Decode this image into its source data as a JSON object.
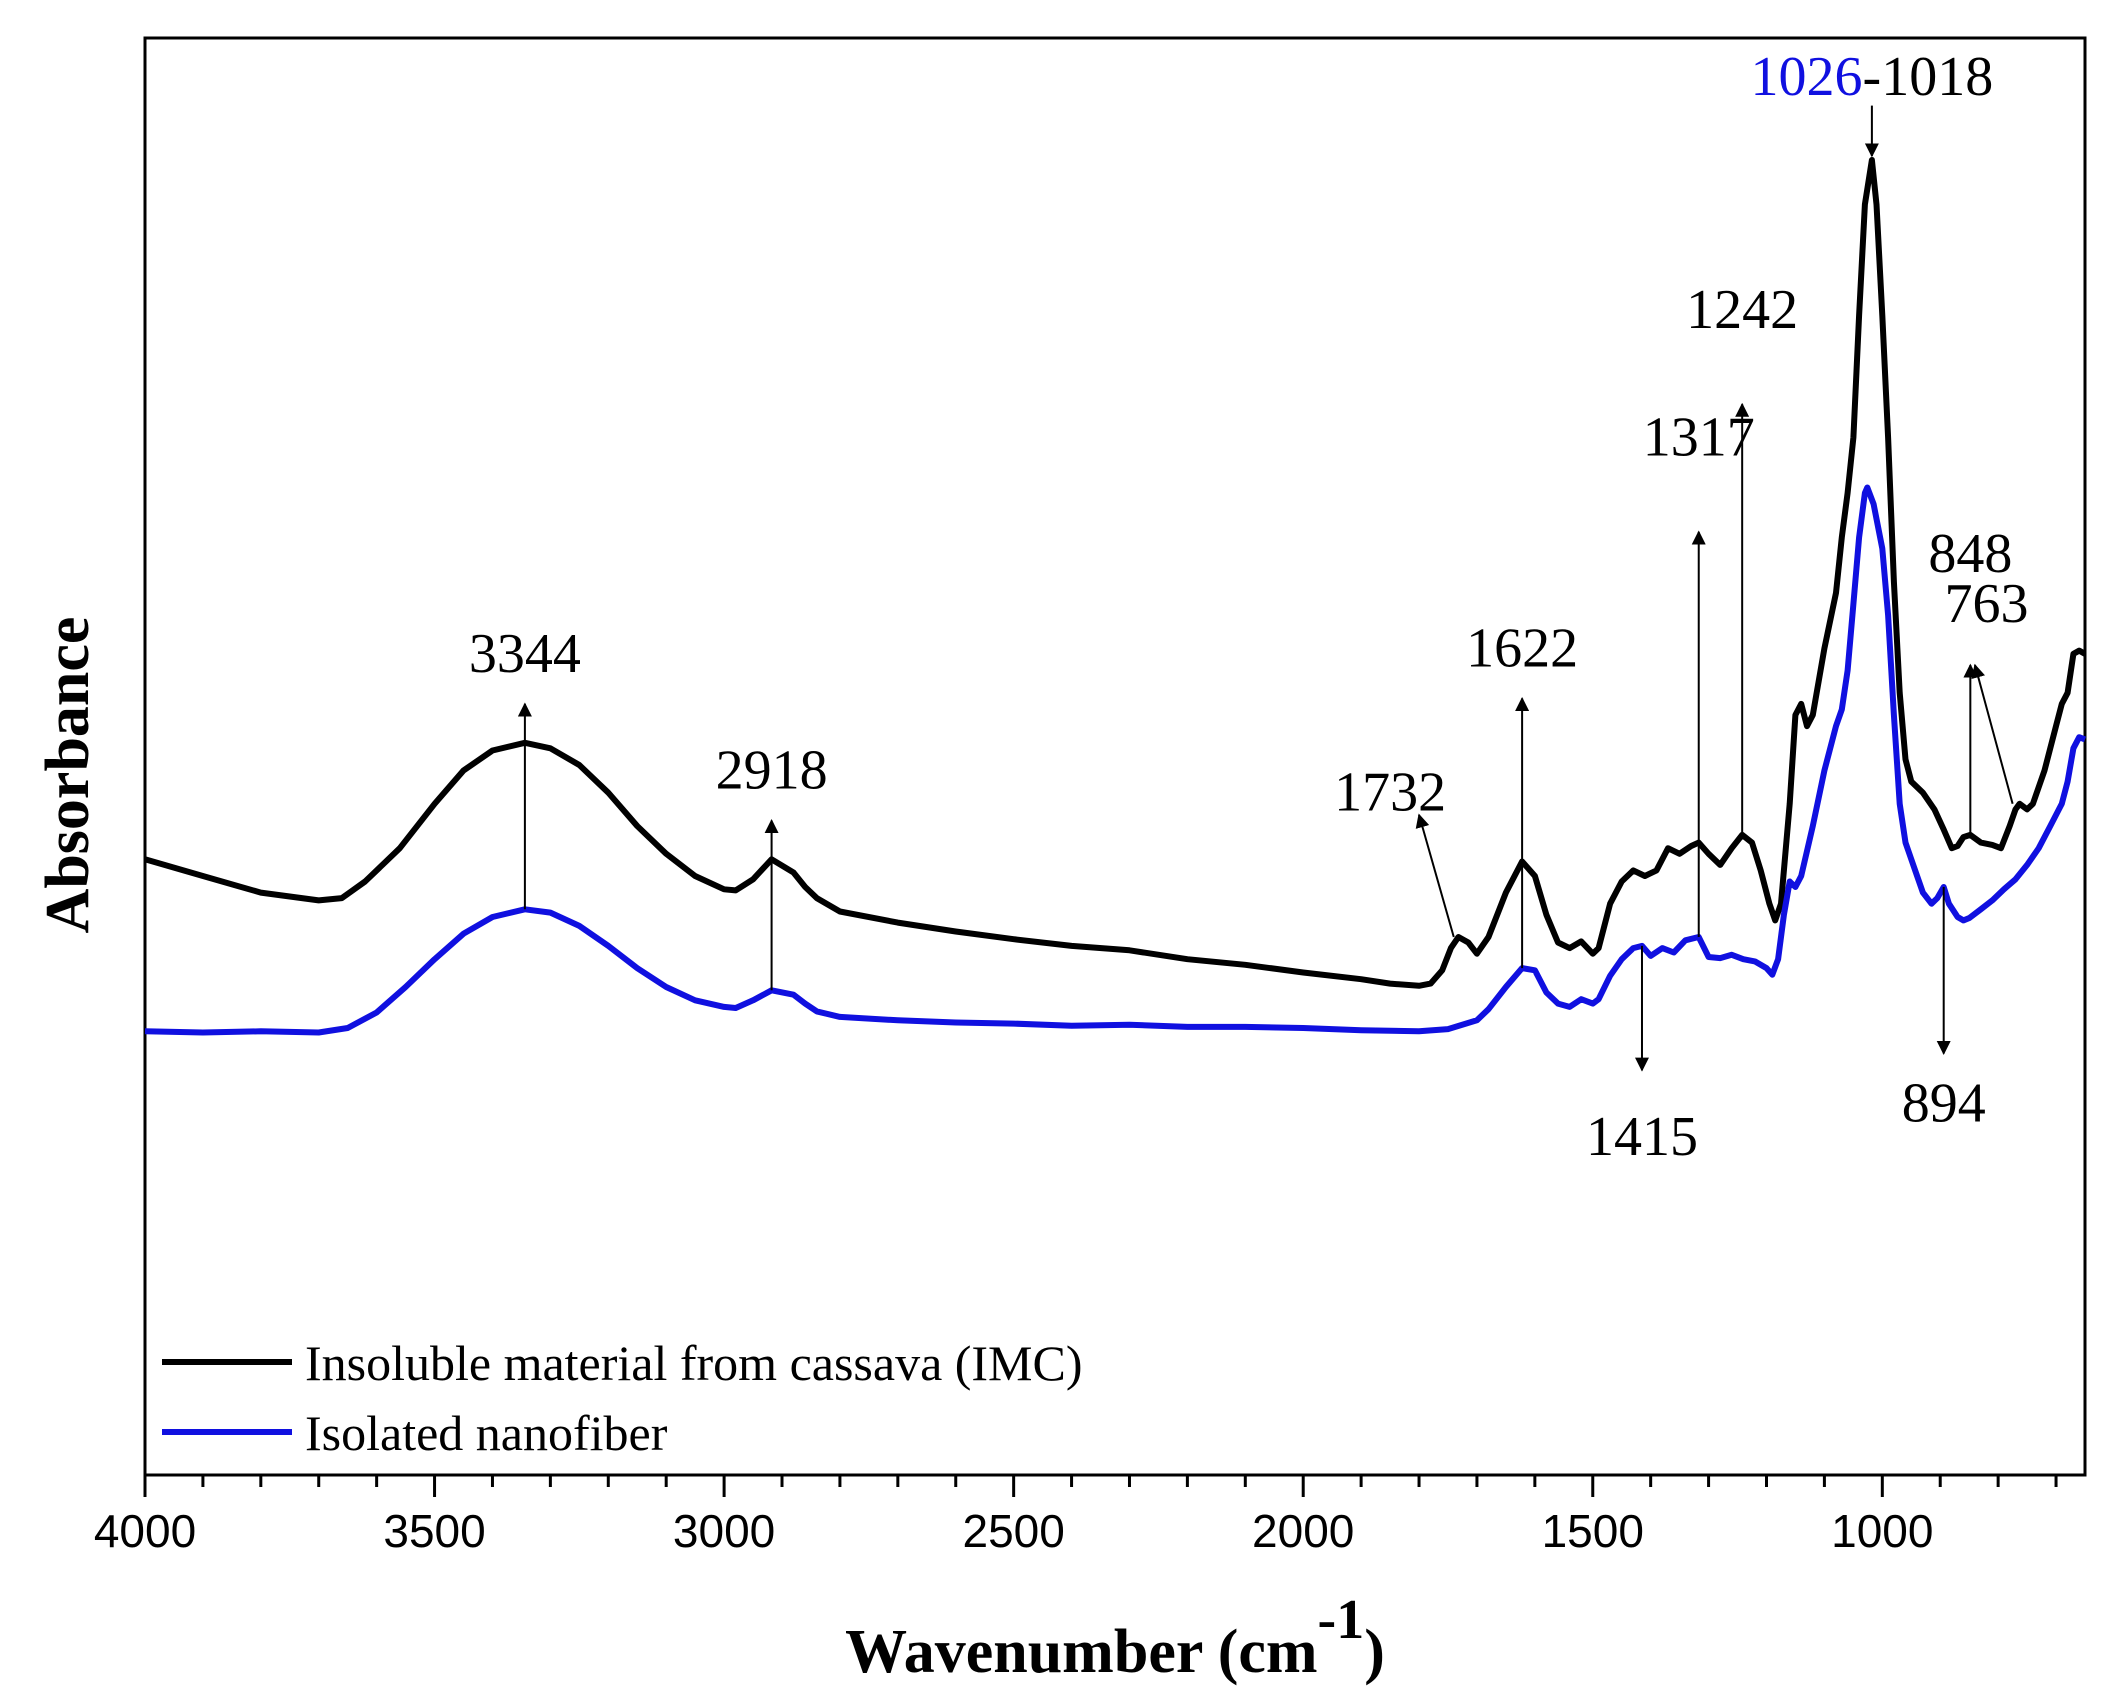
{
  "chart_data": {
    "type": "line",
    "title": "",
    "xlabel": "Wavenumber (cm",
    "xlabel_sup": "-1",
    "xlabel_close": ")",
    "ylabel": "Absorbance",
    "xlim": [
      4000,
      650
    ],
    "x_reversed": true,
    "ylim": [
      0,
      1
    ],
    "y_ticks_shown": false,
    "grid": false,
    "x_ticks": [
      4000,
      3500,
      3000,
      2500,
      2000,
      1500,
      1000
    ],
    "x_tick_labels": [
      "4000",
      "3500",
      "3000",
      "2500",
      "2000",
      "1500",
      "1000"
    ],
    "legend": {
      "placement": "bottom-left",
      "entries": [
        {
          "label": "Insoluble material from cassava (IMC)",
          "color": "#000000"
        },
        {
          "label": "Isolated nanofiber",
          "color": "#1010e0"
        }
      ]
    },
    "series": [
      {
        "name": "Insoluble material from cassava (IMC)",
        "color": "#000000",
        "points": [
          [
            4000,
            0.37
          ],
          [
            3900,
            0.355
          ],
          [
            3800,
            0.34
          ],
          [
            3700,
            0.333
          ],
          [
            3660,
            0.335
          ],
          [
            3620,
            0.35
          ],
          [
            3560,
            0.38
          ],
          [
            3500,
            0.42
          ],
          [
            3450,
            0.45
          ],
          [
            3400,
            0.468
          ],
          [
            3344,
            0.475
          ],
          [
            3300,
            0.47
          ],
          [
            3250,
            0.455
          ],
          [
            3200,
            0.43
          ],
          [
            3150,
            0.4
          ],
          [
            3100,
            0.375
          ],
          [
            3050,
            0.355
          ],
          [
            3000,
            0.343
          ],
          [
            2980,
            0.342
          ],
          [
            2950,
            0.352
          ],
          [
            2918,
            0.37
          ],
          [
            2880,
            0.358
          ],
          [
            2860,
            0.345
          ],
          [
            2840,
            0.335
          ],
          [
            2800,
            0.323
          ],
          [
            2700,
            0.313
          ],
          [
            2600,
            0.305
          ],
          [
            2500,
            0.298
          ],
          [
            2400,
            0.292
          ],
          [
            2300,
            0.288
          ],
          [
            2200,
            0.28
          ],
          [
            2100,
            0.275
          ],
          [
            2000,
            0.268
          ],
          [
            1900,
            0.262
          ],
          [
            1850,
            0.258
          ],
          [
            1800,
            0.256
          ],
          [
            1780,
            0.258
          ],
          [
            1760,
            0.27
          ],
          [
            1745,
            0.29
          ],
          [
            1732,
            0.3
          ],
          [
            1715,
            0.295
          ],
          [
            1700,
            0.285
          ],
          [
            1680,
            0.3
          ],
          [
            1650,
            0.34
          ],
          [
            1622,
            0.368
          ],
          [
            1600,
            0.355
          ],
          [
            1580,
            0.32
          ],
          [
            1560,
            0.295
          ],
          [
            1540,
            0.29
          ],
          [
            1520,
            0.296
          ],
          [
            1500,
            0.285
          ],
          [
            1490,
            0.29
          ],
          [
            1470,
            0.33
          ],
          [
            1450,
            0.35
          ],
          [
            1430,
            0.36
          ],
          [
            1410,
            0.355
          ],
          [
            1390,
            0.36
          ],
          [
            1370,
            0.38
          ],
          [
            1350,
            0.375
          ],
          [
            1330,
            0.382
          ],
          [
            1317,
            0.385
          ],
          [
            1300,
            0.375
          ],
          [
            1280,
            0.365
          ],
          [
            1260,
            0.38
          ],
          [
            1242,
            0.392
          ],
          [
            1225,
            0.385
          ],
          [
            1210,
            0.36
          ],
          [
            1195,
            0.33
          ],
          [
            1185,
            0.315
          ],
          [
            1175,
            0.33
          ],
          [
            1160,
            0.42
          ],
          [
            1150,
            0.5
          ],
          [
            1140,
            0.51
          ],
          [
            1130,
            0.49
          ],
          [
            1120,
            0.5
          ],
          [
            1100,
            0.56
          ],
          [
            1080,
            0.61
          ],
          [
            1070,
            0.66
          ],
          [
            1060,
            0.7
          ],
          [
            1050,
            0.75
          ],
          [
            1040,
            0.86
          ],
          [
            1030,
            0.96
          ],
          [
            1018,
            1.0
          ],
          [
            1010,
            0.96
          ],
          [
            1000,
            0.86
          ],
          [
            990,
            0.75
          ],
          [
            980,
            0.62
          ],
          [
            970,
            0.52
          ],
          [
            960,
            0.46
          ],
          [
            950,
            0.44
          ],
          [
            930,
            0.43
          ],
          [
            910,
            0.415
          ],
          [
            895,
            0.398
          ],
          [
            880,
            0.38
          ],
          [
            870,
            0.382
          ],
          [
            860,
            0.39
          ],
          [
            848,
            0.392
          ],
          [
            830,
            0.385
          ],
          [
            810,
            0.383
          ],
          [
            795,
            0.38
          ],
          [
            780,
            0.4
          ],
          [
            770,
            0.415
          ],
          [
            763,
            0.42
          ],
          [
            750,
            0.415
          ],
          [
            740,
            0.42
          ],
          [
            720,
            0.45
          ],
          [
            700,
            0.49
          ],
          [
            690,
            0.51
          ],
          [
            680,
            0.52
          ],
          [
            670,
            0.555
          ],
          [
            660,
            0.558
          ],
          [
            650,
            0.555
          ]
        ]
      },
      {
        "name": "Isolated nanofiber",
        "color": "#1010e0",
        "points": [
          [
            4000,
            0.215
          ],
          [
            3900,
            0.214
          ],
          [
            3800,
            0.215
          ],
          [
            3700,
            0.214
          ],
          [
            3650,
            0.218
          ],
          [
            3600,
            0.232
          ],
          [
            3550,
            0.255
          ],
          [
            3500,
            0.28
          ],
          [
            3450,
            0.303
          ],
          [
            3400,
            0.318
          ],
          [
            3344,
            0.325
          ],
          [
            3300,
            0.322
          ],
          [
            3250,
            0.31
          ],
          [
            3200,
            0.292
          ],
          [
            3150,
            0.272
          ],
          [
            3100,
            0.255
          ],
          [
            3050,
            0.243
          ],
          [
            3000,
            0.237
          ],
          [
            2980,
            0.236
          ],
          [
            2950,
            0.243
          ],
          [
            2918,
            0.252
          ],
          [
            2880,
            0.248
          ],
          [
            2860,
            0.24
          ],
          [
            2840,
            0.233
          ],
          [
            2800,
            0.228
          ],
          [
            2700,
            0.225
          ],
          [
            2600,
            0.223
          ],
          [
            2500,
            0.222
          ],
          [
            2400,
            0.22
          ],
          [
            2300,
            0.221
          ],
          [
            2200,
            0.219
          ],
          [
            2100,
            0.219
          ],
          [
            2000,
            0.218
          ],
          [
            1900,
            0.216
          ],
          [
            1800,
            0.215
          ],
          [
            1750,
            0.217
          ],
          [
            1700,
            0.225
          ],
          [
            1680,
            0.235
          ],
          [
            1650,
            0.255
          ],
          [
            1622,
            0.272
          ],
          [
            1600,
            0.27
          ],
          [
            1580,
            0.25
          ],
          [
            1560,
            0.24
          ],
          [
            1540,
            0.237
          ],
          [
            1520,
            0.244
          ],
          [
            1500,
            0.24
          ],
          [
            1490,
            0.244
          ],
          [
            1470,
            0.265
          ],
          [
            1450,
            0.28
          ],
          [
            1430,
            0.29
          ],
          [
            1415,
            0.292
          ],
          [
            1400,
            0.283
          ],
          [
            1380,
            0.29
          ],
          [
            1360,
            0.286
          ],
          [
            1340,
            0.297
          ],
          [
            1317,
            0.3
          ],
          [
            1300,
            0.282
          ],
          [
            1280,
            0.281
          ],
          [
            1260,
            0.284
          ],
          [
            1240,
            0.28
          ],
          [
            1220,
            0.278
          ],
          [
            1200,
            0.272
          ],
          [
            1190,
            0.266
          ],
          [
            1180,
            0.28
          ],
          [
            1170,
            0.32
          ],
          [
            1160,
            0.35
          ],
          [
            1150,
            0.345
          ],
          [
            1140,
            0.355
          ],
          [
            1120,
            0.4
          ],
          [
            1100,
            0.45
          ],
          [
            1080,
            0.49
          ],
          [
            1070,
            0.505
          ],
          [
            1060,
            0.54
          ],
          [
            1050,
            0.6
          ],
          [
            1040,
            0.66
          ],
          [
            1030,
            0.7
          ],
          [
            1026,
            0.705
          ],
          [
            1015,
            0.69
          ],
          [
            1000,
            0.65
          ],
          [
            990,
            0.59
          ],
          [
            980,
            0.5
          ],
          [
            970,
            0.42
          ],
          [
            960,
            0.385
          ],
          [
            950,
            0.37
          ],
          [
            940,
            0.355
          ],
          [
            930,
            0.34
          ],
          [
            915,
            0.33
          ],
          [
            905,
            0.335
          ],
          [
            894,
            0.345
          ],
          [
            885,
            0.33
          ],
          [
            870,
            0.318
          ],
          [
            860,
            0.315
          ],
          [
            850,
            0.317
          ],
          [
            830,
            0.325
          ],
          [
            810,
            0.333
          ],
          [
            790,
            0.343
          ],
          [
            770,
            0.352
          ],
          [
            750,
            0.365
          ],
          [
            730,
            0.38
          ],
          [
            710,
            0.4
          ],
          [
            690,
            0.42
          ],
          [
            680,
            0.44
          ],
          [
            670,
            0.47
          ],
          [
            660,
            0.48
          ],
          [
            650,
            0.478
          ]
        ]
      }
    ],
    "annotations": [
      {
        "text": "3344",
        "x": 3344,
        "series": 0,
        "from_y": 0.325,
        "to_y": 0.51,
        "dir": "up",
        "text_y": 0.555
      },
      {
        "text": "2918",
        "x": 2918,
        "series": 0,
        "from_y": 0.252,
        "to_y": 0.405,
        "dir": "up",
        "text_y": 0.45
      },
      {
        "text": "1622",
        "x": 1622,
        "series": 0,
        "from_y": 0.272,
        "to_y": 0.515,
        "dir": "up",
        "text_y": 0.56
      },
      {
        "text": "1317",
        "x": 1317,
        "series": 0,
        "from_y": 0.3,
        "to_y": 0.665,
        "dir": "up",
        "text_y": 0.75
      },
      {
        "text": "1242",
        "x": 1242,
        "series": 0,
        "from_y": 0.392,
        "to_y": 0.78,
        "dir": "up",
        "text_y": 0.865
      },
      {
        "text": "1415",
        "x": 1415,
        "series": 1,
        "from_y": 0.292,
        "to_y": 0.18,
        "dir": "down",
        "text_y": 0.12
      },
      {
        "text": "894",
        "x": 894,
        "series": 1,
        "from_y": 0.345,
        "to_y": 0.195,
        "dir": "down",
        "text_y": 0.15
      },
      {
        "text": "848",
        "x": 848,
        "series": 0,
        "from_y": 0.392,
        "to_y": 0.545,
        "dir": "up",
        "text_y": 0.645
      },
      {
        "text": "763",
        "x": 763,
        "series": 0,
        "from_y": 0.42,
        "to_y": 0.545,
        "dir": "up-diag",
        "text_y": 0.6,
        "text_x": 820,
        "from_x": 775,
        "to_x": 840
      },
      {
        "text": "1732",
        "x": 1732,
        "series": 0,
        "from_y": 0.3,
        "to_y": 0.41,
        "dir": "up-diag",
        "text_y": 0.43,
        "text_x": 1850,
        "from_x": 1740,
        "to_x": 1800
      },
      {
        "text_blue": "1026",
        "text_black": "-1018",
        "x": 1018,
        "series": 0,
        "from_y": 1.0,
        "to_y": 1.04,
        "dir": "down-top",
        "text_y": 1.075
      }
    ]
  }
}
